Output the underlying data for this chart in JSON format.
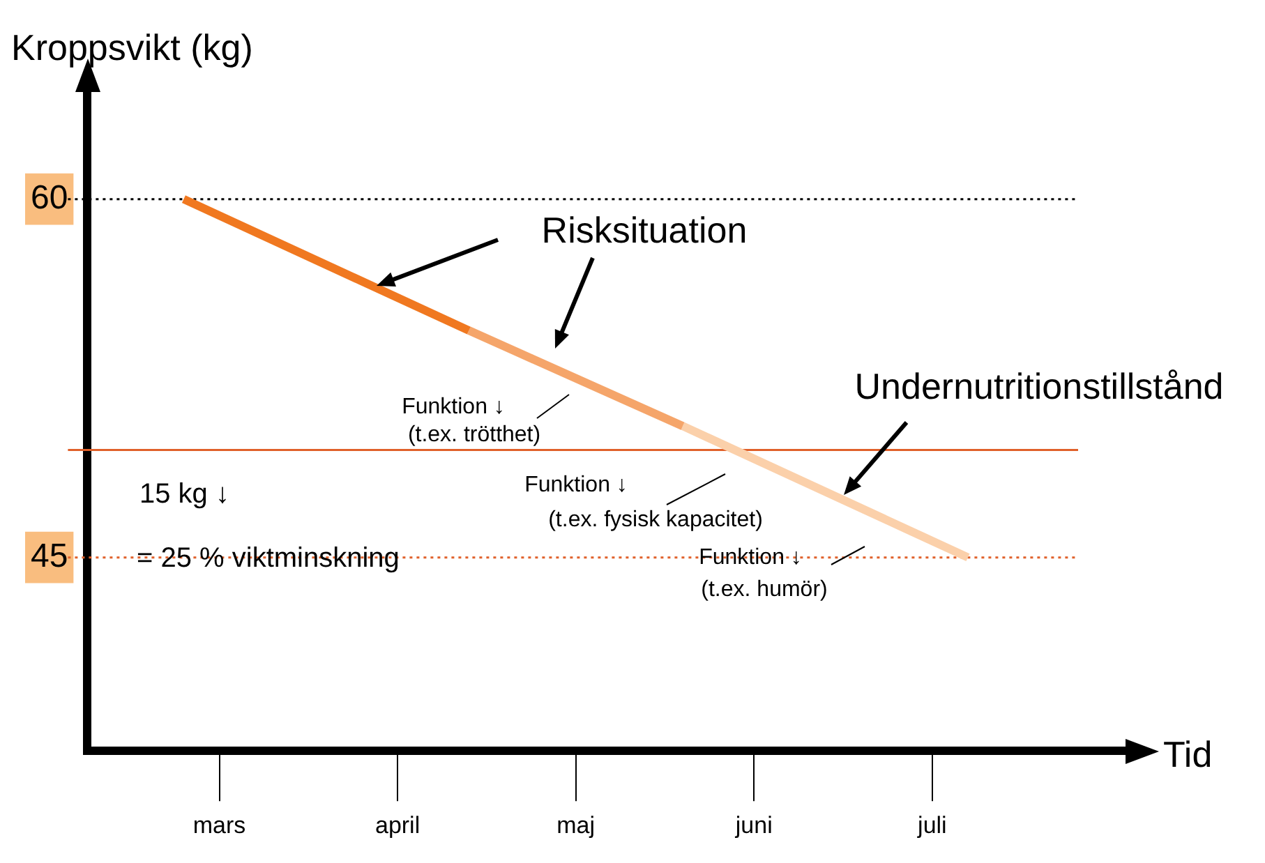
{
  "chart_data": {
    "type": "line",
    "xlabel": "Tid",
    "ylabel": "Kroppsvikt (kg)",
    "categories": [
      null,
      "mars",
      null,
      null,
      null,
      null,
      "april",
      null,
      null,
      null,
      null,
      "maj",
      null,
      null,
      null,
      null,
      "juni",
      null,
      null,
      null,
      null,
      "juli",
      null
    ],
    "ylim": [
      36.9,
      64.6
    ],
    "yticks": [
      60,
      45
    ],
    "grid": false,
    "legend": false,
    "marker": "none",
    "series": [
      {
        "color": "#f07820",
        "values": [
          60,
          null,
          null,
          null,
          null,
          null,
          null,
          null,
          54.5,
          null,
          null,
          null,
          null,
          null,
          null,
          null,
          null,
          null,
          null,
          null,
          null,
          null,
          null
        ]
      },
      {
        "color": "#f5a56a",
        "values": [
          null,
          null,
          null,
          null,
          null,
          null,
          null,
          null,
          54.5,
          null,
          null,
          null,
          null,
          null,
          50.5,
          null,
          null,
          null,
          null,
          null,
          null,
          null,
          null
        ]
      },
      {
        "color": "#fbd0aa",
        "values": [
          null,
          null,
          null,
          null,
          null,
          null,
          null,
          null,
          null,
          null,
          null,
          null,
          null,
          null,
          50.5,
          null,
          null,
          null,
          null,
          null,
          null,
          null,
          45
        ]
      }
    ],
    "ref_lines": [
      {
        "axis": "y",
        "value": 49.5,
        "color": "#e0602a",
        "line_style": "solid"
      },
      {
        "axis": "y",
        "value": 45,
        "color": "#e0602a",
        "line_style": "dotted"
      },
      {
        "axis": "y",
        "value": 60,
        "color": "#000000",
        "line_style": "dotted"
      }
    ],
    "annotations": [
      "Risksituation",
      "Undernutritionstillstånd",
      "Funktion ↓",
      "(t.ex. trötthet)",
      "Funktion ↓",
      "(t.ex. fysisk kapacitet)",
      "Funktion ↓",
      "(t.ex. humör)",
      "15 kg ↓",
      "= 25 % viktminskning"
    ]
  }
}
